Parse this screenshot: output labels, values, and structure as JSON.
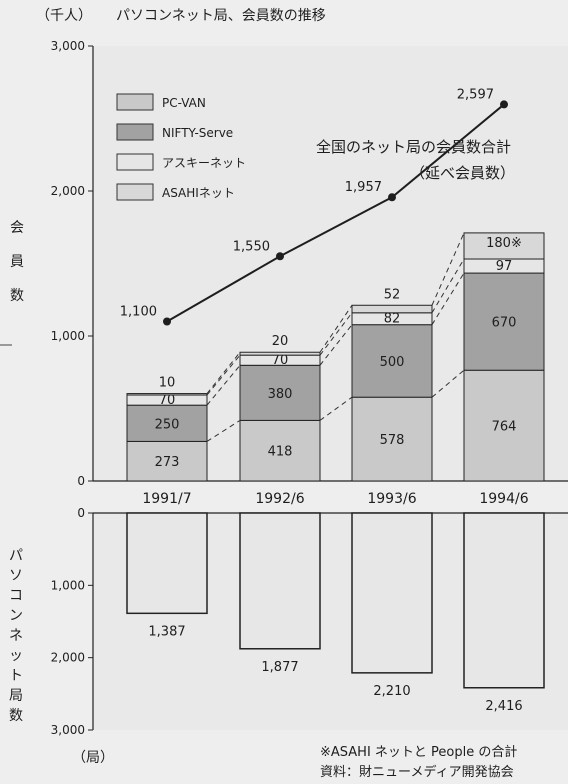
{
  "header": {
    "unit_label": "（千人）",
    "title": "パソコンネット局、会員数の推移"
  },
  "y_top_label": "会員数",
  "y_bottom_label": "パソコンネット局数",
  "bottom_unit_label": "（局）",
  "notes": {
    "footnote": "※ASAHI ネットと People の合計",
    "source": "資料：財ニューメディア開発協会"
  },
  "colors": {
    "pc_van": "#c9c9c9",
    "nifty": "#a2a2a2",
    "ascii": "#e6e6e6",
    "asahi": "#d8d8d8",
    "stations_bar": "#e7e7e7",
    "line": "#1e1e1e"
  },
  "chart_data": [
    {
      "type": "bar",
      "stacked": true,
      "categories": [
        "1991/7",
        "1992/6",
        "1993/6",
        "1994/6"
      ],
      "ylim": [
        0,
        3000
      ],
      "yticks": [
        "0",
        "1,000",
        "2,000",
        "3,000"
      ],
      "legend_position": "top-left",
      "series": [
        {
          "name": "PC-VAN",
          "values": [
            273,
            418,
            578,
            764
          ],
          "labels": [
            "273",
            "418",
            "578",
            "764"
          ]
        },
        {
          "name": "NIFTY-Serve",
          "values": [
            250,
            380,
            500,
            670
          ],
          "labels": [
            "250",
            "380",
            "500",
            "670"
          ]
        },
        {
          "name": "アスキーネット",
          "values": [
            70,
            70,
            82,
            97
          ],
          "labels": [
            "70",
            "70",
            "82",
            "97"
          ]
        },
        {
          "name": "ASAHIネット",
          "values": [
            10,
            20,
            52,
            180
          ],
          "labels": [
            "10",
            "20",
            "52",
            "180※"
          ]
        }
      ]
    },
    {
      "type": "line",
      "x": [
        "1991/7",
        "1992/6",
        "1993/6",
        "1994/6"
      ],
      "values": [
        1100,
        1550,
        1957,
        2597
      ],
      "labels": [
        "1,100",
        "1,550",
        "1,957",
        "2,597"
      ],
      "annotation": [
        "全国のネット局の会員数合計",
        "（延べ会員数）"
      ]
    },
    {
      "type": "bar",
      "orientation": "downward",
      "categories": [
        "1991/7",
        "1992/6",
        "1993/6",
        "1994/6"
      ],
      "values": [
        1387,
        1877,
        2210,
        2416
      ],
      "labels": [
        "1,387",
        "1,877",
        "2,210",
        "2,416"
      ],
      "ylim": [
        0,
        3000
      ],
      "yticks": [
        "0",
        "1,000",
        "2,000",
        "3,000"
      ]
    }
  ]
}
